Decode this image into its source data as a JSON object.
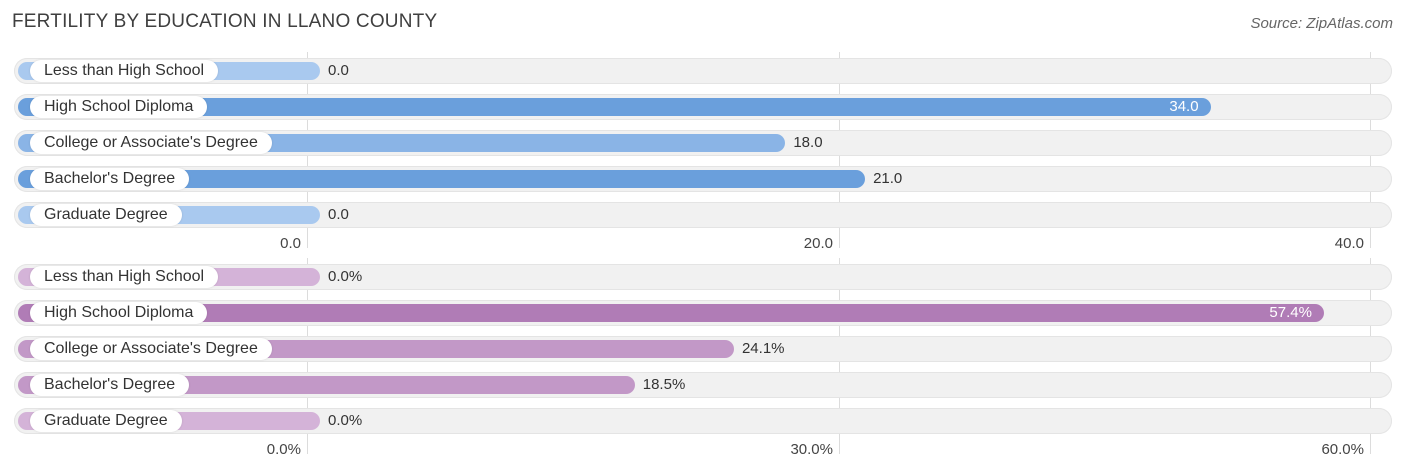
{
  "title": "FERTILITY BY EDUCATION IN LLANO COUNTY",
  "source": "Source: ZipAtlas.com",
  "colors": {
    "blue_dark": "#6a9fdc",
    "blue_light": "#a9c9ef",
    "purple_dark": "#b07cb6",
    "purple_light": "#d4b3d8"
  },
  "chart_data": [
    {
      "type": "bar",
      "orientation": "horizontal",
      "categories": [
        "Less than High School",
        "High School Diploma",
        "College or Associate's Degree",
        "Bachelor's Degree",
        "Graduate Degree"
      ],
      "values": [
        0.0,
        34.0,
        18.0,
        21.0,
        0.0
      ],
      "value_labels": [
        "0.0",
        "34.0",
        "18.0",
        "21.0",
        "0.0"
      ],
      "xlim": [
        0,
        40
      ],
      "ticks": [
        0,
        20,
        40
      ],
      "tick_labels": [
        "0.0",
        "20.0",
        "40.0"
      ],
      "color_scheme": "blue"
    },
    {
      "type": "bar",
      "orientation": "horizontal",
      "categories": [
        "Less than High School",
        "High School Diploma",
        "College or Associate's Degree",
        "Bachelor's Degree",
        "Graduate Degree"
      ],
      "values": [
        0.0,
        57.4,
        24.1,
        18.5,
        0.0
      ],
      "value_labels": [
        "0.0%",
        "57.4%",
        "24.1%",
        "18.5%",
        "0.0%"
      ],
      "xlim": [
        0,
        60
      ],
      "ticks": [
        0,
        30,
        60
      ],
      "tick_labels": [
        "0.0%",
        "30.0%",
        "60.0%"
      ],
      "color_scheme": "purple"
    }
  ]
}
